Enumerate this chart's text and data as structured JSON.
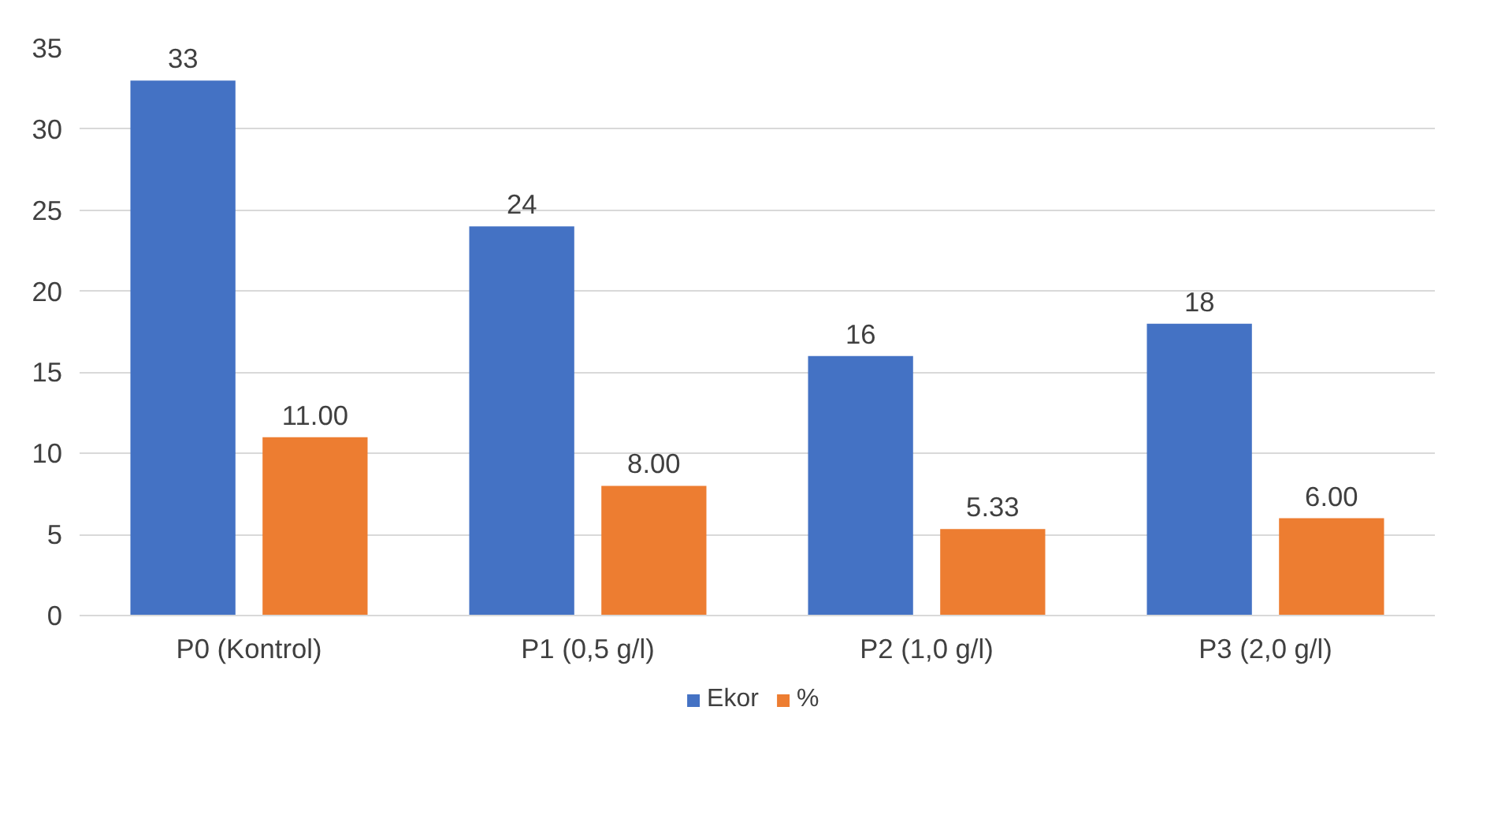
{
  "chart_data": {
    "type": "bar",
    "categories": [
      "P0 (Kontrol)",
      "P1 (0,5 g/l)",
      "P2 (1,0 g/l)",
      "P3 (2,0 g/l)"
    ],
    "series": [
      {
        "name": "Ekor",
        "color": "#4472c4",
        "values": [
          33,
          24,
          16,
          18
        ],
        "value_labels": [
          "33",
          "24",
          "16",
          "18"
        ]
      },
      {
        "name": "%",
        "color": "#ed7d31",
        "values": [
          11,
          8,
          5.33,
          6
        ],
        "value_labels": [
          "11.00",
          "8.00",
          "5.33",
          "6.00"
        ]
      }
    ],
    "ylim": [
      0,
      35
    ],
    "yticks": [
      0,
      5,
      10,
      15,
      20,
      25,
      30,
      35
    ],
    "grid": "y",
    "legend": "bottom"
  }
}
